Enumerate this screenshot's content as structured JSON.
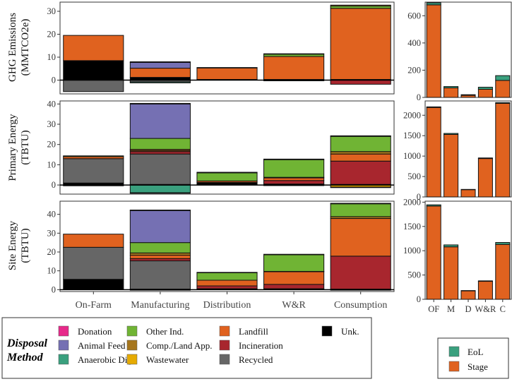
{
  "colors": {
    "Donation": "#e7298a",
    "Animal Feed": "#7570b3",
    "Anaerobic Dig.": "#3aa07e",
    "Other Ind.": "#70b434",
    "Comp./Land App.": "#a6761d",
    "Wastewater": "#e6ab02",
    "Landfill": "#e0621f",
    "Incineration": "#a8262e",
    "Recycled": "#666666",
    "Unk.": "#000000",
    "EoL": "#3aa07e",
    "Stage": "#e0621f"
  },
  "legend": {
    "title_line1": "Disposal",
    "title_line2": "Method",
    "items": [
      "Donation",
      "Animal Feed",
      "Anaerobic Dig.",
      "Other Ind.",
      "Comp./Land App.",
      "Wastewater",
      "Landfill",
      "Incineration",
      "Recycled",
      "Unk."
    ]
  },
  "legend2": {
    "items": [
      "EoL",
      "Stage"
    ]
  },
  "chart_data": [
    {
      "type": "bar",
      "stacked": true,
      "name": "ghg-disposal",
      "ylabel": [
        "GHG Emissions",
        "(MMTCO2e)"
      ],
      "categories": [
        "On-Farm",
        "Manufacturing",
        "Distribution",
        "W&R",
        "Consumption"
      ],
      "ylim": [
        -6,
        34
      ],
      "yticks": [
        0,
        10,
        20,
        30
      ],
      "zero_line": true,
      "series": [
        {
          "name": "Recycled",
          "values": [
            -5,
            -0.8,
            0,
            0,
            0
          ]
        },
        {
          "name": "Anaerobic Dig.",
          "values": [
            0,
            -0.4,
            0,
            0,
            0
          ]
        },
        {
          "name": "Incineration",
          "values": [
            0,
            0,
            0,
            -0.3,
            -1.8
          ]
        },
        {
          "name": "Unk.",
          "values": [
            8.5,
            1.2,
            0.3,
            0.3,
            0.3
          ]
        },
        {
          "name": "Landfill",
          "values": [
            11,
            4,
            5,
            10,
            31
          ]
        },
        {
          "name": "Animal Feed",
          "values": [
            0,
            2.5,
            0,
            0,
            0
          ]
        },
        {
          "name": "Other Ind.",
          "values": [
            0,
            0.3,
            0,
            1,
            1
          ]
        },
        {
          "name": "Comp./Land App.",
          "values": [
            0,
            0,
            0.2,
            0.2,
            0.4
          ]
        }
      ]
    },
    {
      "type": "bar",
      "stacked": true,
      "name": "primary-energy-disposal",
      "ylabel": [
        "Primary Energy",
        "(TBTU)"
      ],
      "categories": [
        "On-Farm",
        "Manufacturing",
        "Distribution",
        "W&R",
        "Consumption"
      ],
      "ylim": [
        -4.5,
        41.5
      ],
      "yticks": [
        0,
        10,
        20,
        30,
        40
      ],
      "zero_line": true,
      "series": [
        {
          "name": "Anaerobic Dig.",
          "values": [
            0,
            -3.8,
            0,
            0,
            0
          ]
        },
        {
          "name": "Wastewater",
          "values": [
            0,
            0,
            0,
            -0.3,
            -1
          ]
        },
        {
          "name": "Recycled",
          "values": [
            -0.4,
            -0.3,
            0,
            0,
            -0.3
          ]
        },
        {
          "name": "Unk.",
          "values": [
            1,
            0.3,
            1.3,
            0.5,
            0.3
          ]
        },
        {
          "name": "Recycled",
          "values": [
            12,
            15,
            0,
            0,
            0
          ]
        },
        {
          "name": "Incineration",
          "values": [
            0,
            1.2,
            0,
            1.7,
            11.5
          ]
        },
        {
          "name": "Landfill",
          "values": [
            1,
            0.5,
            0.7,
            1.3,
            3.5
          ]
        },
        {
          "name": "Comp./Land App.",
          "values": [
            0,
            0.6,
            0,
            0.3,
            1.2
          ]
        },
        {
          "name": "Other Ind.",
          "values": [
            0.4,
            5.4,
            4,
            8.7,
            7.5
          ]
        },
        {
          "name": "Animal Feed",
          "values": [
            0,
            17,
            0,
            0,
            0
          ]
        },
        {
          "name": "Unk.",
          "values": [
            0,
            0.3,
            0.3,
            0.3,
            0.3
          ]
        }
      ]
    },
    {
      "type": "bar",
      "stacked": true,
      "name": "site-energy-disposal",
      "ylabel": [
        "Site Energy",
        "(TBTU)"
      ],
      "categories": [
        "On-Farm",
        "Manufacturing",
        "Distribution",
        "W&R",
        "Consumption"
      ],
      "ylim": [
        -1,
        47
      ],
      "yticks": [
        0,
        10,
        20,
        30,
        40
      ],
      "zero_line": true,
      "series": [
        {
          "name": "Recycled",
          "values": [
            0,
            -0.3,
            0,
            0,
            -0.3
          ]
        },
        {
          "name": "Unk.",
          "values": [
            5.5,
            0.3,
            0.5,
            0.5,
            0.3
          ]
        },
        {
          "name": "Recycled",
          "values": [
            17,
            15,
            0,
            0,
            0
          ]
        },
        {
          "name": "Incineration",
          "values": [
            0,
            1.2,
            1.5,
            2.3,
            17.5
          ]
        },
        {
          "name": "Landfill",
          "values": [
            7,
            1.8,
            3,
            6.7,
            20
          ]
        },
        {
          "name": "Comp./Land App.",
          "values": [
            0,
            1.2,
            0,
            0.2,
            1
          ]
        },
        {
          "name": "Other Ind.",
          "values": [
            0,
            5.5,
            4,
            8.8,
            6.8
          ]
        },
        {
          "name": "Animal Feed",
          "values": [
            0,
            17,
            0,
            0,
            0
          ]
        },
        {
          "name": "Unk.",
          "values": [
            0,
            0.3,
            0.2,
            0.3,
            0.3
          ]
        }
      ]
    },
    {
      "type": "bar",
      "stacked": true,
      "name": "ghg-stage",
      "categories": [
        "OF",
        "M",
        "D",
        "W&R",
        "C"
      ],
      "ylim": [
        0,
        700
      ],
      "yticks": [
        0,
        200,
        400,
        600
      ],
      "series": [
        {
          "name": "Stage",
          "values": [
            680,
            70,
            15,
            60,
            125
          ]
        },
        {
          "name": "EoL",
          "values": [
            15,
            10,
            5,
            15,
            35
          ]
        }
      ]
    },
    {
      "type": "bar",
      "stacked": true,
      "name": "primary-energy-stage",
      "categories": [
        "OF",
        "M",
        "D",
        "W&R",
        "C"
      ],
      "ylim": [
        0,
        2350
      ],
      "yticks": [
        0,
        500,
        1000,
        1500,
        2000
      ],
      "series": [
        {
          "name": "Stage",
          "values": [
            2190,
            1530,
            180,
            940,
            2290
          ]
        },
        {
          "name": "EoL",
          "values": [
            15,
            25,
            5,
            15,
            20
          ]
        }
      ]
    },
    {
      "type": "bar",
      "stacked": true,
      "name": "site-energy-stage",
      "categories": [
        "OF",
        "M",
        "D",
        "W&R",
        "C"
      ],
      "xticklabels": [
        "OF",
        "M",
        "D",
        "W&R",
        "C"
      ],
      "ylim": [
        0,
        2020
      ],
      "yticks": [
        0,
        500,
        1000,
        1500,
        2000
      ],
      "series": [
        {
          "name": "Stage",
          "values": [
            1920,
            1080,
            175,
            370,
            1130
          ]
        },
        {
          "name": "EoL",
          "values": [
            25,
            40,
            5,
            10,
            40
          ]
        }
      ]
    }
  ]
}
